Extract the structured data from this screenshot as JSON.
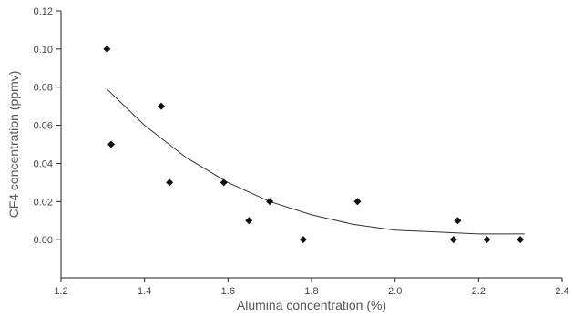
{
  "chart_data": {
    "type": "scatter",
    "title": "",
    "xlabel": "Alumina concentration (%)",
    "ylabel": "CF4 concentration (ppmv)",
    "xlim": [
      1.2,
      2.4
    ],
    "ylim": [
      -0.02,
      0.12
    ],
    "x_ticks": [
      "1.2",
      "1.4",
      "1.6",
      "1.8",
      "2.0",
      "2.2",
      "2.4"
    ],
    "y_ticks": [
      "0.00",
      "0.02",
      "0.04",
      "0.06",
      "0.08",
      "0.10",
      "0.12"
    ],
    "grid": false,
    "legend": "none",
    "series": [
      {
        "marker": "diamond",
        "points": [
          {
            "x": 1.31,
            "y": 0.1
          },
          {
            "x": 1.32,
            "y": 0.05
          },
          {
            "x": 1.44,
            "y": 0.07
          },
          {
            "x": 1.46,
            "y": 0.03
          },
          {
            "x": 1.59,
            "y": 0.03
          },
          {
            "x": 1.65,
            "y": 0.01
          },
          {
            "x": 1.7,
            "y": 0.02
          },
          {
            "x": 1.78,
            "y": 0.0
          },
          {
            "x": 1.91,
            "y": 0.02
          },
          {
            "x": 2.14,
            "y": 0.0
          },
          {
            "x": 2.15,
            "y": 0.01
          },
          {
            "x": 2.22,
            "y": 0.0
          },
          {
            "x": 2.3,
            "y": 0.0
          }
        ]
      }
    ],
    "trend_line": {
      "type": "exponential-decay",
      "points": [
        {
          "x": 1.31,
          "y": 0.079
        },
        {
          "x": 1.4,
          "y": 0.06
        },
        {
          "x": 1.5,
          "y": 0.043
        },
        {
          "x": 1.6,
          "y": 0.03
        },
        {
          "x": 1.7,
          "y": 0.02
        },
        {
          "x": 1.8,
          "y": 0.013
        },
        {
          "x": 1.9,
          "y": 0.008
        },
        {
          "x": 2.0,
          "y": 0.005
        },
        {
          "x": 2.1,
          "y": 0.004
        },
        {
          "x": 2.2,
          "y": 0.003
        },
        {
          "x": 2.31,
          "y": 0.003
        }
      ]
    },
    "colors": {
      "points": "#111111",
      "line": "#333333",
      "axes": "#222222"
    }
  }
}
